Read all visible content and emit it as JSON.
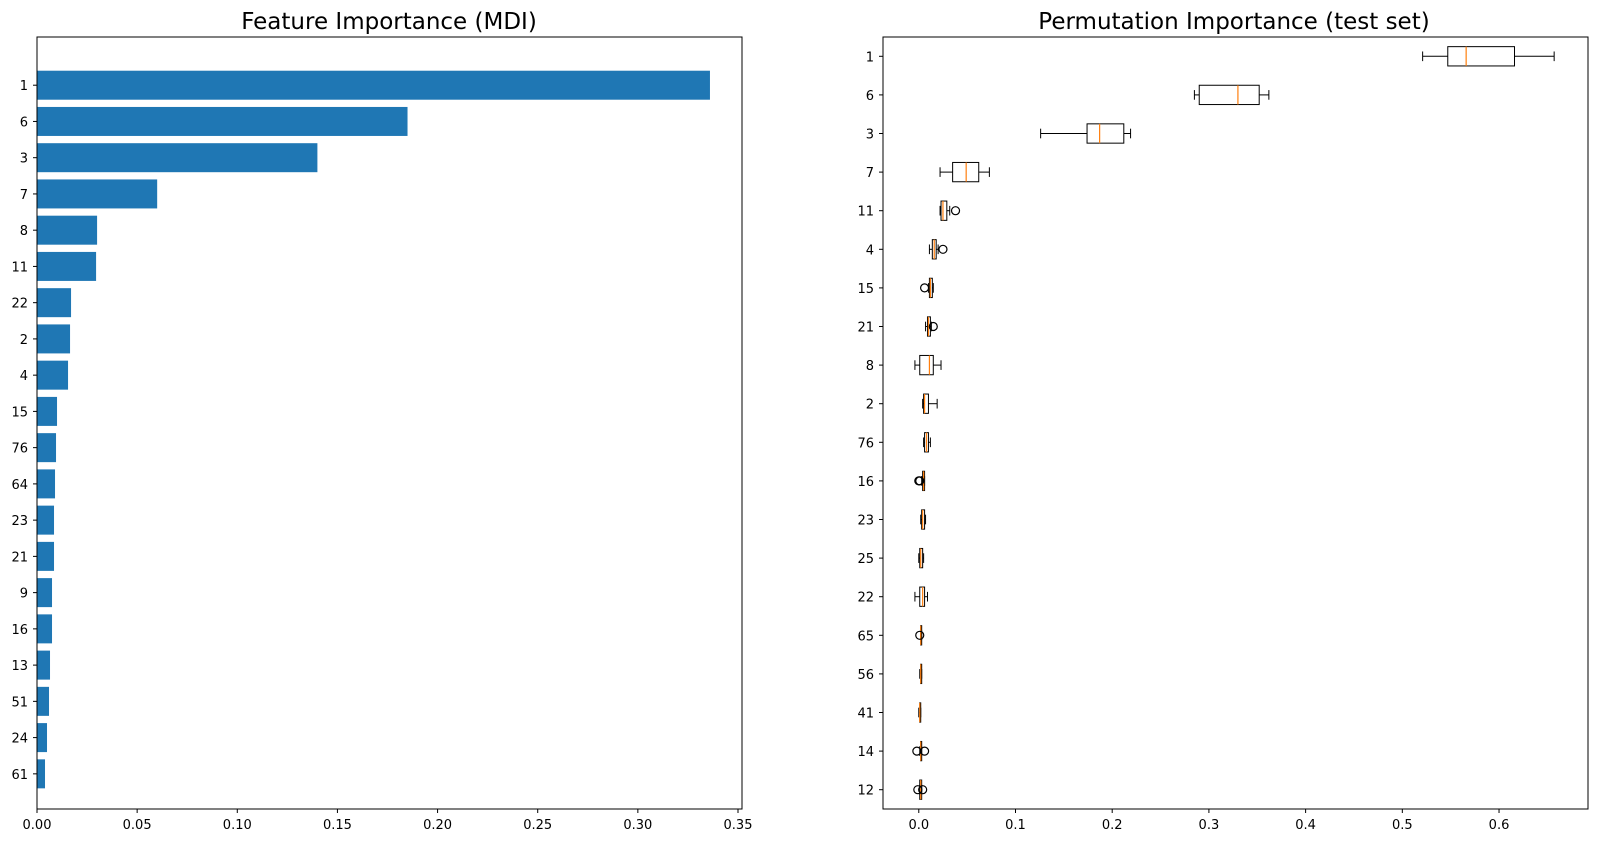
{
  "colors": {
    "bar": "#1f77b4",
    "median": "#ff7f0e",
    "box": "#000000",
    "axis": "#000000"
  },
  "chart_data": [
    {
      "type": "bar",
      "orientation": "horizontal",
      "title": "Feature Importance (MDI)",
      "categories": [
        "1",
        "6",
        "3",
        "7",
        "8",
        "11",
        "22",
        "2",
        "4",
        "15",
        "76",
        "64",
        "23",
        "21",
        "9",
        "16",
        "13",
        "51",
        "24",
        "61"
      ],
      "values": [
        0.336,
        0.185,
        0.14,
        0.06,
        0.03,
        0.0295,
        0.017,
        0.0165,
        0.0155,
        0.01,
        0.0095,
        0.009,
        0.0085,
        0.0085,
        0.0075,
        0.0075,
        0.0065,
        0.006,
        0.005,
        0.004
      ],
      "xlim": [
        0,
        0.352
      ],
      "xticks": [
        "0.00",
        "0.05",
        "0.10",
        "0.15",
        "0.20",
        "0.25",
        "0.30",
        "0.35"
      ],
      "xtick_values": [
        0,
        0.05,
        0.1,
        0.15,
        0.2,
        0.25,
        0.3,
        0.35
      ],
      "xlabel": "",
      "ylabel": "",
      "grid": false
    },
    {
      "type": "box",
      "orientation": "horizontal",
      "title": "Permutation Importance (test set)",
      "categories": [
        "1",
        "6",
        "3",
        "7",
        "11",
        "4",
        "15",
        "21",
        "8",
        "2",
        "76",
        "16",
        "23",
        "25",
        "22",
        "65",
        "56",
        "41",
        "14",
        "12"
      ],
      "boxes": [
        {
          "wl": 0.521,
          "q1": 0.547,
          "med": 0.566,
          "q3": 0.616,
          "wh": 0.657,
          "fliers": []
        },
        {
          "wl": 0.285,
          "q1": 0.29,
          "med": 0.33,
          "q3": 0.352,
          "wh": 0.362,
          "fliers": []
        },
        {
          "wl": 0.126,
          "q1": 0.174,
          "med": 0.187,
          "q3": 0.212,
          "wh": 0.219,
          "fliers": []
        },
        {
          "wl": 0.022,
          "q1": 0.035,
          "med": 0.049,
          "q3": 0.062,
          "wh": 0.073,
          "fliers": []
        },
        {
          "wl": 0.022,
          "q1": 0.023,
          "med": 0.025,
          "q3": 0.029,
          "wh": 0.032,
          "fliers": [
            0.038
          ]
        },
        {
          "wl": 0.011,
          "q1": 0.014,
          "med": 0.016,
          "q3": 0.018,
          "wh": 0.02,
          "fliers": [
            0.025
          ]
        },
        {
          "wl": 0.01,
          "q1": 0.011,
          "med": 0.012,
          "q3": 0.014,
          "wh": 0.015,
          "fliers": [
            0.006
          ]
        },
        {
          "wl": 0.007,
          "q1": 0.009,
          "med": 0.01,
          "q3": 0.012,
          "wh": 0.013,
          "fliers": [
            0.015
          ]
        },
        {
          "wl": -0.004,
          "q1": 0.001,
          "med": 0.011,
          "q3": 0.015,
          "wh": 0.023,
          "fliers": []
        },
        {
          "wl": 0.004,
          "q1": 0.005,
          "med": 0.006,
          "q3": 0.01,
          "wh": 0.019,
          "fliers": []
        },
        {
          "wl": 0.005,
          "q1": 0.006,
          "med": 0.008,
          "q3": 0.01,
          "wh": 0.012,
          "fliers": []
        },
        {
          "wl": 0.003,
          "q1": 0.004,
          "med": 0.005,
          "q3": 0.006,
          "wh": 0.006,
          "fliers": [
            0.0,
            0.001
          ]
        },
        {
          "wl": 0.002,
          "q1": 0.003,
          "med": 0.004,
          "q3": 0.006,
          "wh": 0.007,
          "fliers": []
        },
        {
          "wl": 0.0,
          "q1": 0.001,
          "med": 0.002,
          "q3": 0.004,
          "wh": 0.005,
          "fliers": []
        },
        {
          "wl": -0.004,
          "q1": 0.001,
          "med": 0.004,
          "q3": 0.006,
          "wh": 0.009,
          "fliers": []
        },
        {
          "wl": 0.002,
          "q1": 0.002,
          "med": 0.002,
          "q3": 0.003,
          "wh": 0.003,
          "fliers": [
            0.001
          ]
        },
        {
          "wl": 0.001,
          "q1": 0.002,
          "med": 0.002,
          "q3": 0.003,
          "wh": 0.003,
          "fliers": []
        },
        {
          "wl": 0.0,
          "q1": 0.001,
          "med": 0.001,
          "q3": 0.002,
          "wh": 0.002,
          "fliers": []
        },
        {
          "wl": 0.001,
          "q1": 0.002,
          "med": 0.002,
          "q3": 0.003,
          "wh": 0.003,
          "fliers": [
            -0.002,
            0.006
          ]
        },
        {
          "wl": 0.001,
          "q1": 0.001,
          "med": 0.002,
          "q3": 0.003,
          "wh": 0.003,
          "fliers": [
            -0.001,
            0.004
          ]
        }
      ],
      "xlim": [
        -0.037,
        0.692
      ],
      "xticks": [
        "0.0",
        "0.1",
        "0.2",
        "0.3",
        "0.4",
        "0.5",
        "0.6"
      ],
      "xtick_values": [
        0,
        0.1,
        0.2,
        0.3,
        0.4,
        0.5,
        0.6
      ],
      "xlabel": "",
      "ylabel": "",
      "grid": false
    }
  ]
}
